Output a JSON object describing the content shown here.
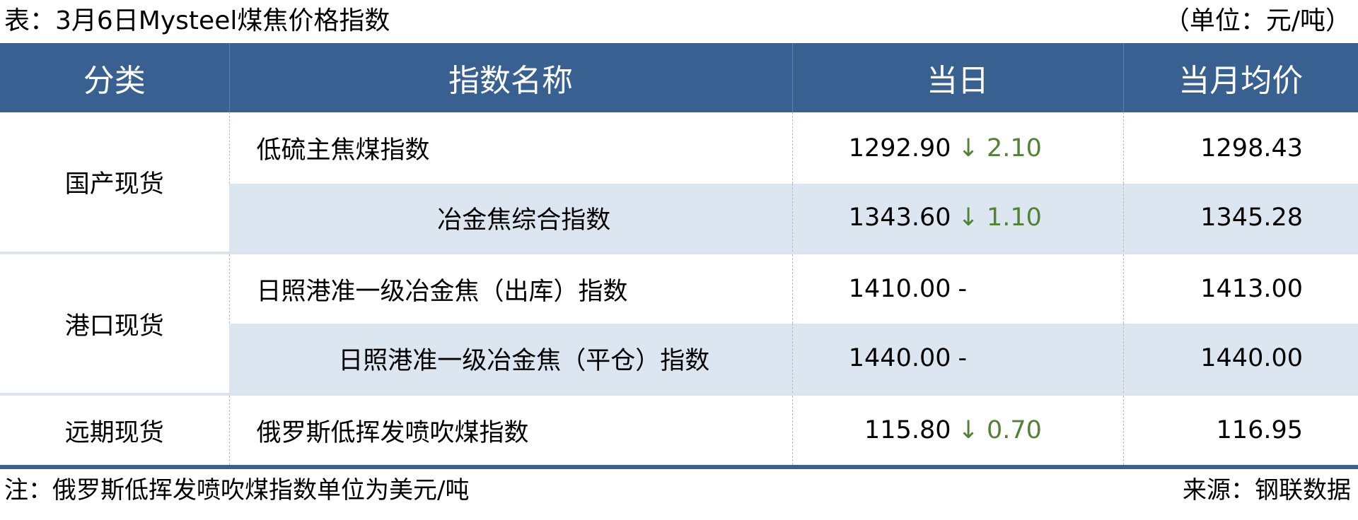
{
  "title": "表：3月6日Mysteel煤焦价格指数",
  "unit": "（单位：元/吨）",
  "headers": [
    "分类",
    "指数名称",
    "当日",
    "当月均价"
  ],
  "groups": [
    {
      "category": "国产现货",
      "rows": [
        {
          "name": "低硫主焦煤指数",
          "value": "1292.90",
          "change": "↓ 2.10",
          "avg": "1298.43"
        },
        {
          "name": "冶金焦综合指数",
          "value": "1343.60",
          "change": "↓ 1.10",
          "avg": "1345.28"
        }
      ]
    },
    {
      "category": "港口现货",
      "rows": [
        {
          "name": "日照港准一级冶金焦（出库）指数",
          "value": "1410.00",
          "change": "-",
          "avg": "1413.00"
        },
        {
          "name": "日照港准一级冶金焦（平仓）指数",
          "value": "1440.00",
          "change": "-",
          "avg": "1440.00"
        }
      ]
    },
    {
      "category": "远期现货",
      "rows": [
        {
          "name": "俄罗斯低挥发喷吹煤指数",
          "value": "115.80",
          "change": "↓ 0.70",
          "avg": "116.95"
        }
      ]
    }
  ],
  "note": "注：俄罗斯低挥发喷吹煤指数单位为美元/吨",
  "source": "来源：钢联数据",
  "colors": {
    "header": "#386192",
    "alt_row": "#dce6f0",
    "down": "#538135"
  }
}
